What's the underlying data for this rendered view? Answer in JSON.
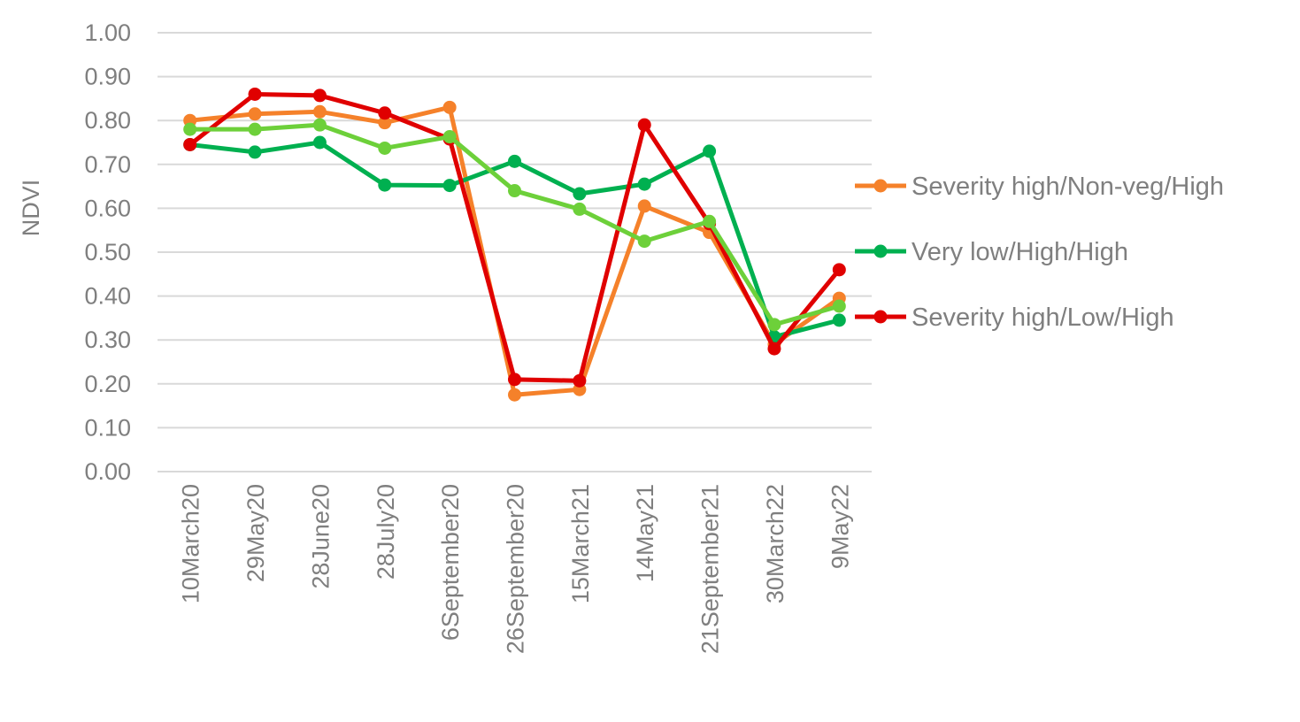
{
  "chart_data": {
    "type": "line",
    "title": "",
    "xlabel": "",
    "ylabel": "NDVI",
    "ylim": [
      0,
      1
    ],
    "ytick_step": 0.1,
    "grid": true,
    "legend_position": "right",
    "categories": [
      "10March20",
      "29May20",
      "28June20",
      "28July20",
      "6September20",
      "26September20",
      "15March21",
      "14May21",
      "21September21",
      "30March22",
      "9May22"
    ],
    "series": [
      {
        "name": "Severity high/Non-veg/High",
        "color": "#f5812a",
        "in_legend": true,
        "values": [
          0.8,
          0.815,
          0.82,
          0.795,
          0.83,
          0.175,
          0.187,
          0.605,
          0.545,
          0.29,
          0.395
        ]
      },
      {
        "name": "Very low/High/High",
        "color": "#00b050",
        "in_legend": true,
        "values": [
          0.745,
          0.728,
          0.75,
          0.653,
          0.652,
          0.707,
          0.633,
          0.655,
          0.73,
          0.307,
          0.345
        ]
      },
      {
        "name": "Severity high/Low/High",
        "color": "#e00000",
        "in_legend": true,
        "values": [
          0.745,
          0.86,
          0.857,
          0.817,
          0.758,
          0.21,
          0.207,
          0.79,
          0.565,
          0.28,
          0.46
        ]
      },
      {
        "name": "",
        "color": "#6dd03a",
        "in_legend": false,
        "values": [
          0.78,
          0.78,
          0.79,
          0.737,
          0.763,
          0.64,
          0.598,
          0.525,
          0.57,
          0.335,
          0.377
        ]
      }
    ]
  }
}
